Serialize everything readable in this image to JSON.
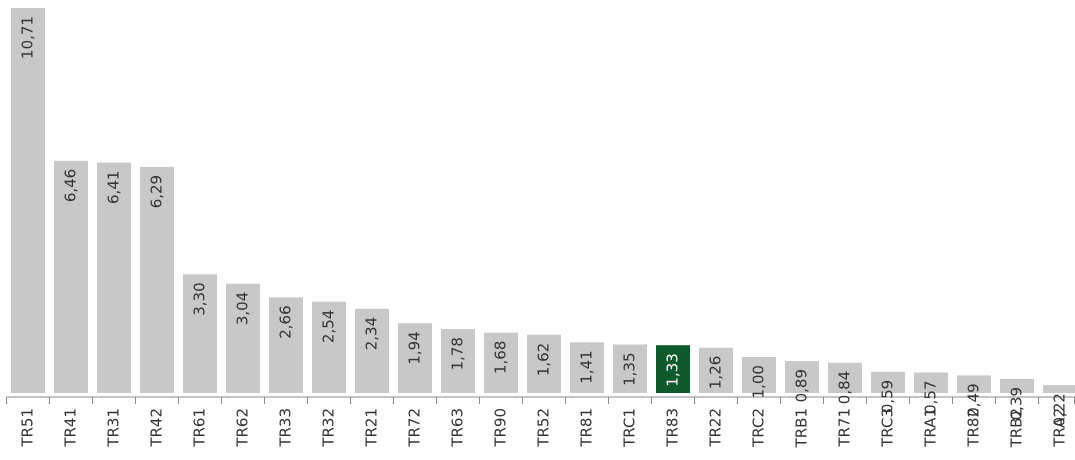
{
  "chart_data": {
    "type": "bar",
    "categories": [
      "TR51",
      "TR41",
      "TR31",
      "TR42",
      "TR61",
      "TR62",
      "TR33",
      "TR32",
      "TR21",
      "TR72",
      "TR63",
      "TR90",
      "TR52",
      "TR81",
      "TRC1",
      "TR83",
      "TR22",
      "TRC2",
      "TRB1",
      "TR71",
      "TRC3",
      "TRA1",
      "TR82",
      "TRB2",
      "TRA2"
    ],
    "values": [
      10.71,
      6.46,
      6.41,
      6.29,
      3.3,
      3.04,
      2.66,
      2.54,
      2.34,
      1.94,
      1.78,
      1.68,
      1.62,
      1.41,
      1.35,
      1.33,
      1.26,
      1.0,
      0.89,
      0.84,
      0.59,
      0.57,
      0.49,
      0.39,
      0.22
    ],
    "value_labels": [
      "10,71",
      "6,46",
      "6,41",
      "6,29",
      "3,30",
      "3,04",
      "2,66",
      "2,54",
      "2,34",
      "1,94",
      "1,78",
      "1,68",
      "1,62",
      "1,41",
      "1,35",
      "1,33",
      "1,26",
      "1,00",
      "0,89",
      "0,84",
      "0,59",
      "0,57",
      "0,49",
      "0,39",
      "0,22"
    ],
    "colors": [
      "#c8c8c8",
      "#c8c8c8",
      "#c8c8c8",
      "#c8c8c8",
      "#c8c8c8",
      "#c8c8c8",
      "#c8c8c8",
      "#c8c8c8",
      "#c8c8c8",
      "#c8c8c8",
      "#c8c8c8",
      "#c8c8c8",
      "#c8c8c8",
      "#c8c8c8",
      "#c8c8c8",
      "#0e5a2c",
      "#c8c8c8",
      "#c8c8c8",
      "#c8c8c8",
      "#c8c8c8",
      "#c8c8c8",
      "#c8c8c8",
      "#c8c8c8",
      "#c8c8c8",
      "#c8c8c8"
    ],
    "label_colors": [
      "#333333",
      "#333333",
      "#333333",
      "#333333",
      "#333333",
      "#333333",
      "#333333",
      "#333333",
      "#333333",
      "#333333",
      "#333333",
      "#333333",
      "#333333",
      "#333333",
      "#333333",
      "#ffffff",
      "#333333",
      "#333333",
      "#333333",
      "#333333",
      "#333333",
      "#333333",
      "#333333",
      "#333333",
      "#333333"
    ],
    "ylim": [
      0,
      10.71
    ]
  }
}
